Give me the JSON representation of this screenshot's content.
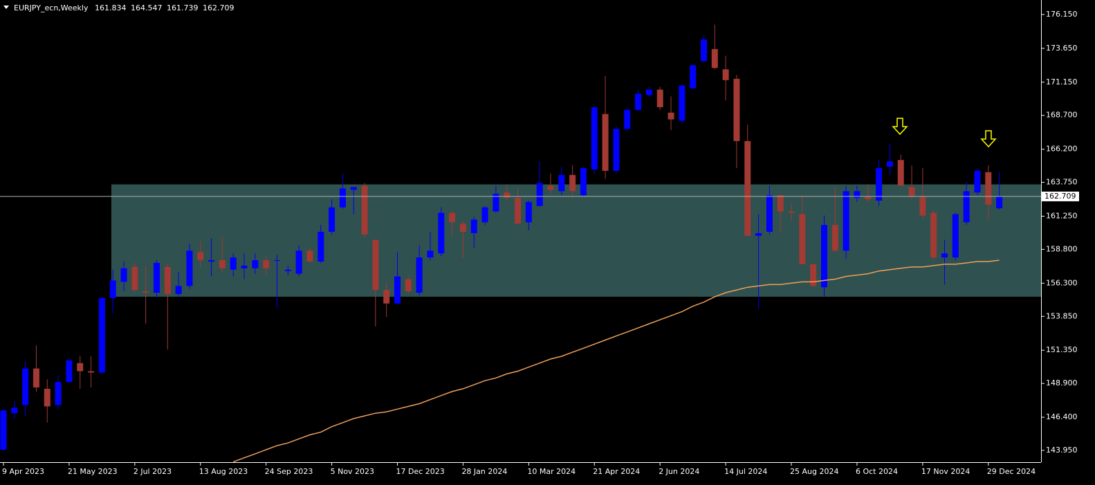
{
  "chart_data": {
    "type": "candlestick",
    "title": "EURJPY_ecn,Weekly",
    "categories": [
      "9 Apr 2023",
      null,
      null,
      null,
      null,
      null,
      "21 May 2023",
      null,
      null,
      null,
      null,
      null,
      "2 Jul 2023",
      null,
      null,
      null,
      null,
      null,
      "13 Aug 2023",
      null,
      null,
      null,
      null,
      null,
      "24 Sep 2023",
      null,
      null,
      null,
      null,
      null,
      "5 Nov 2023",
      null,
      null,
      null,
      null,
      null,
      "17 Dec 2023",
      null,
      null,
      null,
      null,
      null,
      "28 Jan 2024",
      null,
      null,
      null,
      null,
      null,
      "10 Mar 2024",
      null,
      null,
      null,
      null,
      null,
      "21 Apr 2024",
      null,
      null,
      null,
      null,
      null,
      "2 Jun 2024",
      null,
      null,
      null,
      null,
      null,
      "14 Jul 2024",
      null,
      null,
      null,
      null,
      null,
      "25 Aug 2024",
      null,
      null,
      null,
      null,
      null,
      "6 Oct 2024",
      null,
      null,
      null,
      null,
      null,
      "17 Nov 2024",
      null,
      null,
      null,
      null,
      null,
      "29 Dec 2024",
      null
    ],
    "open": [
      144.0,
      146.7,
      147.3,
      150.0,
      148.5,
      147.3,
      149.0,
      150.4,
      149.8,
      149.7,
      155.2,
      156.4,
      157.5,
      155.7,
      155.6,
      157.5,
      155.5,
      156.1,
      158.6,
      157.9,
      158.0,
      157.3,
      157.4,
      157.4,
      158.0,
      157.95,
      157.2,
      157.0,
      158.7,
      157.9,
      160.1,
      161.9,
      163.2,
      163.5,
      159.5,
      155.8,
      154.8,
      156.6,
      155.6,
      158.2,
      158.5,
      161.5,
      160.7,
      160.0,
      160.8,
      161.6,
      163.0,
      162.6,
      160.8,
      162.0,
      163.5,
      163.1,
      164.3,
      162.8,
      164.7,
      168.8,
      164.6,
      167.7,
      169.1,
      170.2,
      170.6,
      168.9,
      168.3,
      170.7,
      172.7,
      173.6,
      172.1,
      171.4,
      166.8,
      159.8,
      160.1,
      162.8,
      161.6,
      161.4,
      157.7,
      156.0,
      160.6,
      158.7,
      162.6,
      162.7,
      162.4,
      164.9,
      165.4,
      163.4,
      162.7,
      161.5,
      158.2,
      158.2,
      160.8,
      163.0,
      164.5,
      161.834
    ],
    "high": [
      147.0,
      147.6,
      150.5,
      151.7,
      149.2,
      149.5,
      150.8,
      150.9,
      150.9,
      155.3,
      157.3,
      157.9,
      157.8,
      157.6,
      158.0,
      157.8,
      157.1,
      159.2,
      159.4,
      159.6,
      159.7,
      158.5,
      158.5,
      158.5,
      158.3,
      158.4,
      157.6,
      159.1,
      158.9,
      160.6,
      162.5,
      164.4,
      163.4,
      163.7,
      159.5,
      156.4,
      158.6,
      156.8,
      159.1,
      160.1,
      161.9,
      161.6,
      160.9,
      161.2,
      162.0,
      163.5,
      163.6,
      163.3,
      162.4,
      165.3,
      164.4,
      164.9,
      165.0,
      164.9,
      169.4,
      171.6,
      167.9,
      169.3,
      170.6,
      170.8,
      170.8,
      170.1,
      171.0,
      172.5,
      174.6,
      175.4,
      173.1,
      171.7,
      168.0,
      161.4,
      163.5,
      162.9,
      162.2,
      162.8,
      157.8,
      161.3,
      163.4,
      163.5,
      163.5,
      163.6,
      165.4,
      166.6,
      165.8,
      165.0,
      164.8,
      161.7,
      159.5,
      161.5,
      163.8,
      164.8,
      165.0,
      164.547
    ],
    "low": [
      143.9,
      146.3,
      146.5,
      148.3,
      146.0,
      147.0,
      148.9,
      148.5,
      148.6,
      149.6,
      154.1,
      155.7,
      155.6,
      153.3,
      155.2,
      151.4,
      155.3,
      155.9,
      157.5,
      156.8,
      157.1,
      156.8,
      156.6,
      157.0,
      156.9,
      154.5,
      156.9,
      156.8,
      157.8,
      157.8,
      159.9,
      161.8,
      161.4,
      159.7,
      153.1,
      153.8,
      154.7,
      155.5,
      155.4,
      158.0,
      158.3,
      159.8,
      158.2,
      158.9,
      160.6,
      161.5,
      162.4,
      160.6,
      160.2,
      162.0,
      162.9,
      162.8,
      162.6,
      162.7,
      164.4,
      164.0,
      164.4,
      167.5,
      169.0,
      170.1,
      169.1,
      167.6,
      168.1,
      170.6,
      172.6,
      172.1,
      169.8,
      164.8,
      159.8,
      154.4,
      159.9,
      160.1,
      160.9,
      157.7,
      156.0,
      155.3,
      158.6,
      158.1,
      162.3,
      162.3,
      162.0,
      164.3,
      163.5,
      162.5,
      161.1,
      158.0,
      156.2,
      158.0,
      160.6,
      162.8,
      161.0,
      161.739
    ],
    "close": [
      146.9,
      147.1,
      150.0,
      148.6,
      147.2,
      149.0,
      150.6,
      149.8,
      149.7,
      155.2,
      156.5,
      157.4,
      155.8,
      155.6,
      157.8,
      155.5,
      156.1,
      158.7,
      158.0,
      158.0,
      157.4,
      158.2,
      157.6,
      158.0,
      157.4,
      158.0,
      157.3,
      158.7,
      157.9,
      160.1,
      161.9,
      163.3,
      163.4,
      159.9,
      155.8,
      154.8,
      156.8,
      155.7,
      158.2,
      158.7,
      161.5,
      160.8,
      160.1,
      161.0,
      161.9,
      162.9,
      162.6,
      160.7,
      162.3,
      163.7,
      163.2,
      164.3,
      163.1,
      164.8,
      169.3,
      164.6,
      167.7,
      169.1,
      170.3,
      170.6,
      169.3,
      168.4,
      170.9,
      172.4,
      174.3,
      172.2,
      171.3,
      166.8,
      159.8,
      160.0,
      162.8,
      161.6,
      161.5,
      157.7,
      156.1,
      160.6,
      158.7,
      163.1,
      163.1,
      162.5,
      164.8,
      165.3,
      163.5,
      162.7,
      161.3,
      158.2,
      158.5,
      161.4,
      163.1,
      164.6,
      162.1,
      162.709
    ],
    "up_color": "#0000ff",
    "down_color": "#a33a33",
    "ma": {
      "color": "#f0a05a",
      "values": [
        null,
        null,
        null,
        null,
        null,
        null,
        null,
        null,
        null,
        null,
        null,
        null,
        null,
        null,
        null,
        null,
        null,
        null,
        null,
        null,
        null,
        143.1,
        143.4,
        143.7,
        144.0,
        144.3,
        144.5,
        144.8,
        145.1,
        145.3,
        145.7,
        146.0,
        146.3,
        146.5,
        146.7,
        146.8,
        147.0,
        147.2,
        147.4,
        147.7,
        148.0,
        148.3,
        148.5,
        148.8,
        149.1,
        149.3,
        149.6,
        149.8,
        150.1,
        150.4,
        150.7,
        150.9,
        151.2,
        151.5,
        151.8,
        152.1,
        152.4,
        152.7,
        153.0,
        153.3,
        153.6,
        153.9,
        154.2,
        154.6,
        154.9,
        155.3,
        155.6,
        155.8,
        156.0,
        156.1,
        156.2,
        156.2,
        156.3,
        156.4,
        156.4,
        156.5,
        156.6,
        156.8,
        156.9,
        157.0,
        157.2,
        157.3,
        157.4,
        157.5,
        157.5,
        157.6,
        157.7,
        157.7,
        157.8,
        157.9,
        157.9,
        158.0
      ]
    },
    "zone": {
      "ylim": [
        155.3,
        163.6
      ],
      "color": "#2f514f"
    },
    "ylim": [
      143.08,
      177.22
    ],
    "yticks": [
      {
        "value": 176.15,
        "label": "176.150"
      },
      {
        "value": 173.65,
        "label": "173.650"
      },
      {
        "value": 171.15,
        "label": "171.150"
      },
      {
        "value": 168.7,
        "label": "168.700"
      },
      {
        "value": 166.2,
        "label": "166.200"
      },
      {
        "value": 163.75,
        "label": "163.750"
      },
      {
        "value": 161.25,
        "label": "161.250"
      },
      {
        "value": 158.8,
        "label": "158.800"
      },
      {
        "value": 156.3,
        "label": "156.300"
      },
      {
        "value": 153.85,
        "label": "153.850"
      },
      {
        "value": 151.35,
        "label": "151.350"
      },
      {
        "value": 148.9,
        "label": "148.900"
      },
      {
        "value": 146.4,
        "label": "146.400"
      },
      {
        "value": 143.95,
        "label": "143.950"
      }
    ]
  }
}
